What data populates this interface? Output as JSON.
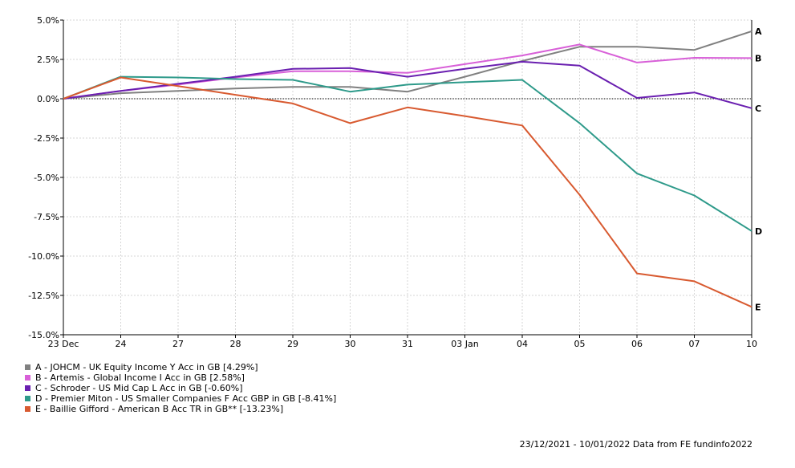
{
  "chart_data": {
    "type": "line",
    "x": [
      "23 Dec",
      "24",
      "27",
      "28",
      "29",
      "30",
      "31",
      "03 Jan",
      "04",
      "05",
      "06",
      "07",
      "10"
    ],
    "ylim": [
      -15,
      5
    ],
    "yticks": [
      "5.0%",
      "2.5%",
      "0.0%",
      "-2.5%",
      "-5.0%",
      "-7.5%",
      "-10.0%",
      "-12.5%",
      "-15.0%"
    ],
    "ytick_values": [
      5,
      2.5,
      0,
      -2.5,
      -5,
      -7.5,
      -10,
      -12.5,
      -15
    ],
    "grid": true,
    "legend_position": "bottom-left",
    "series": [
      {
        "name": "A - JOHCM - UK Equity Income Y Acc in GB [4.29%]",
        "end_label": "A",
        "color": "#808080",
        "values": [
          0,
          0.35,
          0.5,
          0.65,
          0.75,
          0.75,
          0.45,
          1.4,
          2.4,
          3.3,
          3.3,
          3.1,
          4.29
        ]
      },
      {
        "name": "B - Artemis - Global Income I Acc in GB [2.58%]",
        "end_label": "B",
        "color": "#d860d8",
        "values": [
          0,
          0.5,
          0.9,
          1.35,
          1.75,
          1.75,
          1.65,
          2.2,
          2.75,
          3.45,
          2.3,
          2.6,
          2.58
        ]
      },
      {
        "name": "C - Schroder - US Mid Cap L Acc in GB [-0.60%]",
        "end_label": "C",
        "color": "#6a1fb0",
        "values": [
          0,
          0.5,
          0.95,
          1.4,
          1.9,
          1.95,
          1.4,
          1.9,
          2.35,
          2.1,
          0.05,
          0.4,
          -0.6
        ]
      },
      {
        "name": "D - Premier Miton - US Smaller Companies F Acc GBP in GB [-8.41%]",
        "end_label": "D",
        "color": "#2e9a8a",
        "values": [
          0,
          1.4,
          1.35,
          1.25,
          1.2,
          0.45,
          0.9,
          1.05,
          1.2,
          -1.55,
          -4.75,
          -6.15,
          -8.41
        ]
      },
      {
        "name": "E - Baillie Gifford - American B Acc TR in GB** [-13.23%]",
        "end_label": "E",
        "color": "#d85a30",
        "values": [
          0,
          1.35,
          0.8,
          0.25,
          -0.3,
          -1.55,
          -0.55,
          -1.1,
          -1.7,
          -6.1,
          -11.1,
          -11.6,
          -13.23
        ]
      }
    ]
  },
  "footer": {
    "text": "23/12/2021 - 10/01/2022 Data from FE fundinfo2022"
  }
}
